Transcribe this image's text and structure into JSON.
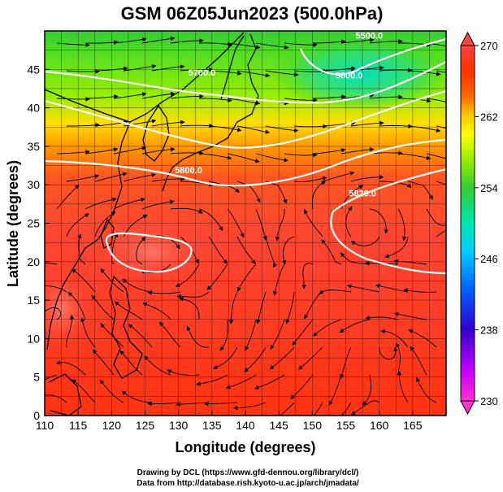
{
  "title": "GSM 06Z05Jun2023 (500.0hPa)",
  "x_axis": {
    "label": "Longitude (degrees)",
    "ticks": [
      "110",
      "115",
      "120",
      "125",
      "130",
      "135",
      "140",
      "145",
      "150",
      "155",
      "160",
      "165"
    ],
    "range": [
      110,
      170
    ]
  },
  "y_axis": {
    "label": "Latitude  (degrees)",
    "ticks": [
      "0",
      "5",
      "10",
      "15",
      "20",
      "25",
      "30",
      "35",
      "40",
      "45"
    ],
    "range": [
      0,
      50
    ]
  },
  "colorbar": {
    "ticks": [
      "270",
      "262",
      "254",
      "246",
      "238",
      "230"
    ],
    "range": [
      230,
      270
    ],
    "colors": [
      "#ff33cc",
      "#cc00ff",
      "#3300cc",
      "#0066ff",
      "#00ccff",
      "#00e6b0",
      "#33cc33",
      "#99ee00",
      "#ffff00",
      "#ffcc00",
      "#ff6600",
      "#ff3300",
      "#ff4444"
    ]
  },
  "contours": [
    {
      "label": "5800.0",
      "lon": 131.5,
      "lat": 31.5
    },
    {
      "label": "5700.0",
      "lon": 133.5,
      "lat": 44.2
    },
    {
      "label": "5600.0",
      "lon": 155.5,
      "lat": 43.8
    },
    {
      "label": "5500.0",
      "lon": 158.5,
      "lat": 49.0
    },
    {
      "label": "5820.0",
      "lon": 157.5,
      "lat": 28.5
    }
  ],
  "credits": {
    "line1": "Drawing by DCL (https://www.gfd-dennou.org/library/dcl/)",
    "line2": "Data from http://database.rish.kyoto-u.ac.jp/arch/jmadata/"
  }
}
